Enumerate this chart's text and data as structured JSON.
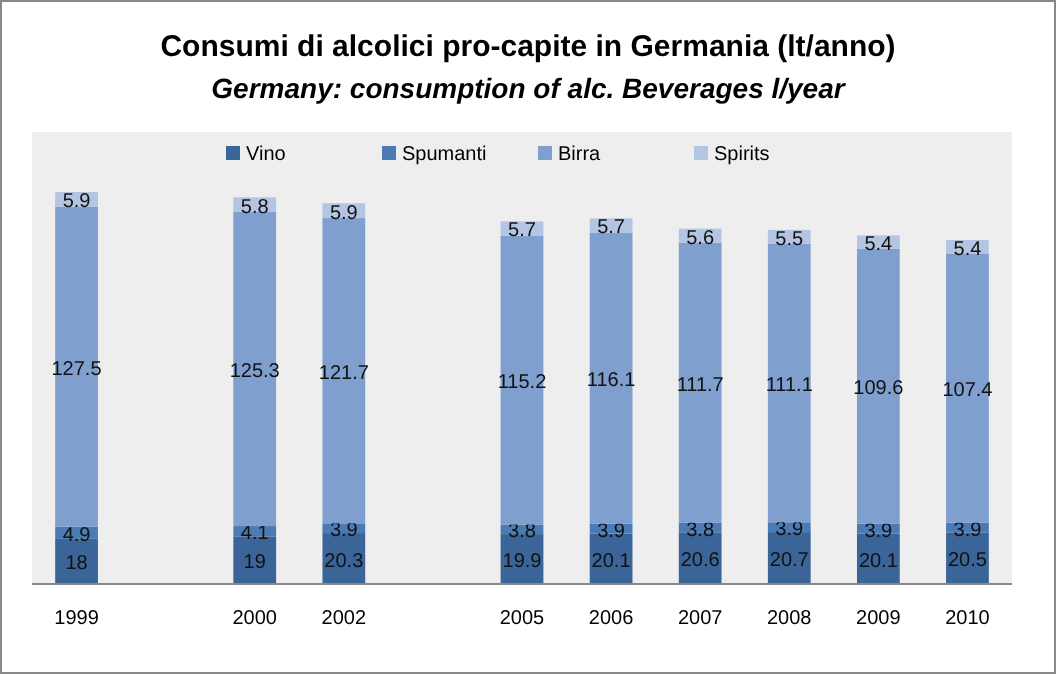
{
  "chart_data": {
    "type": "bar",
    "title": "Consumi di alcolici pro-capite in Germania  (lt/anno)",
    "subtitle": "Germany: consumption of alc. Beverages l/year",
    "categories": [
      "1999",
      null,
      "2000",
      "2002",
      null,
      "2005",
      "2006",
      "2007",
      "2008",
      "2009",
      "2010"
    ],
    "stacked": true,
    "data_labels": true,
    "legend": "top",
    "grid": false,
    "series": [
      {
        "name": "Vino",
        "color": "#3b6598",
        "values": [
          18,
          null,
          19,
          20.3,
          null,
          19.9,
          20.1,
          20.6,
          20.7,
          20.1,
          20.5
        ]
      },
      {
        "name": "Spumanti",
        "color": "#4a7bb5",
        "values": [
          4.9,
          null,
          4.1,
          3.9,
          null,
          3.8,
          3.9,
          3.8,
          3.9,
          3.9,
          3.9
        ]
      },
      {
        "name": "Birra",
        "color": "#7f9fcf",
        "values": [
          127.5,
          null,
          125.3,
          121.7,
          null,
          115.2,
          116.1,
          111.7,
          111.1,
          109.6,
          107.4
        ]
      },
      {
        "name": "Spirits",
        "color": "#b3c5e3",
        "values": [
          5.9,
          null,
          5.8,
          5.9,
          null,
          5.7,
          5.7,
          5.6,
          5.5,
          5.4,
          5.4
        ]
      }
    ]
  }
}
